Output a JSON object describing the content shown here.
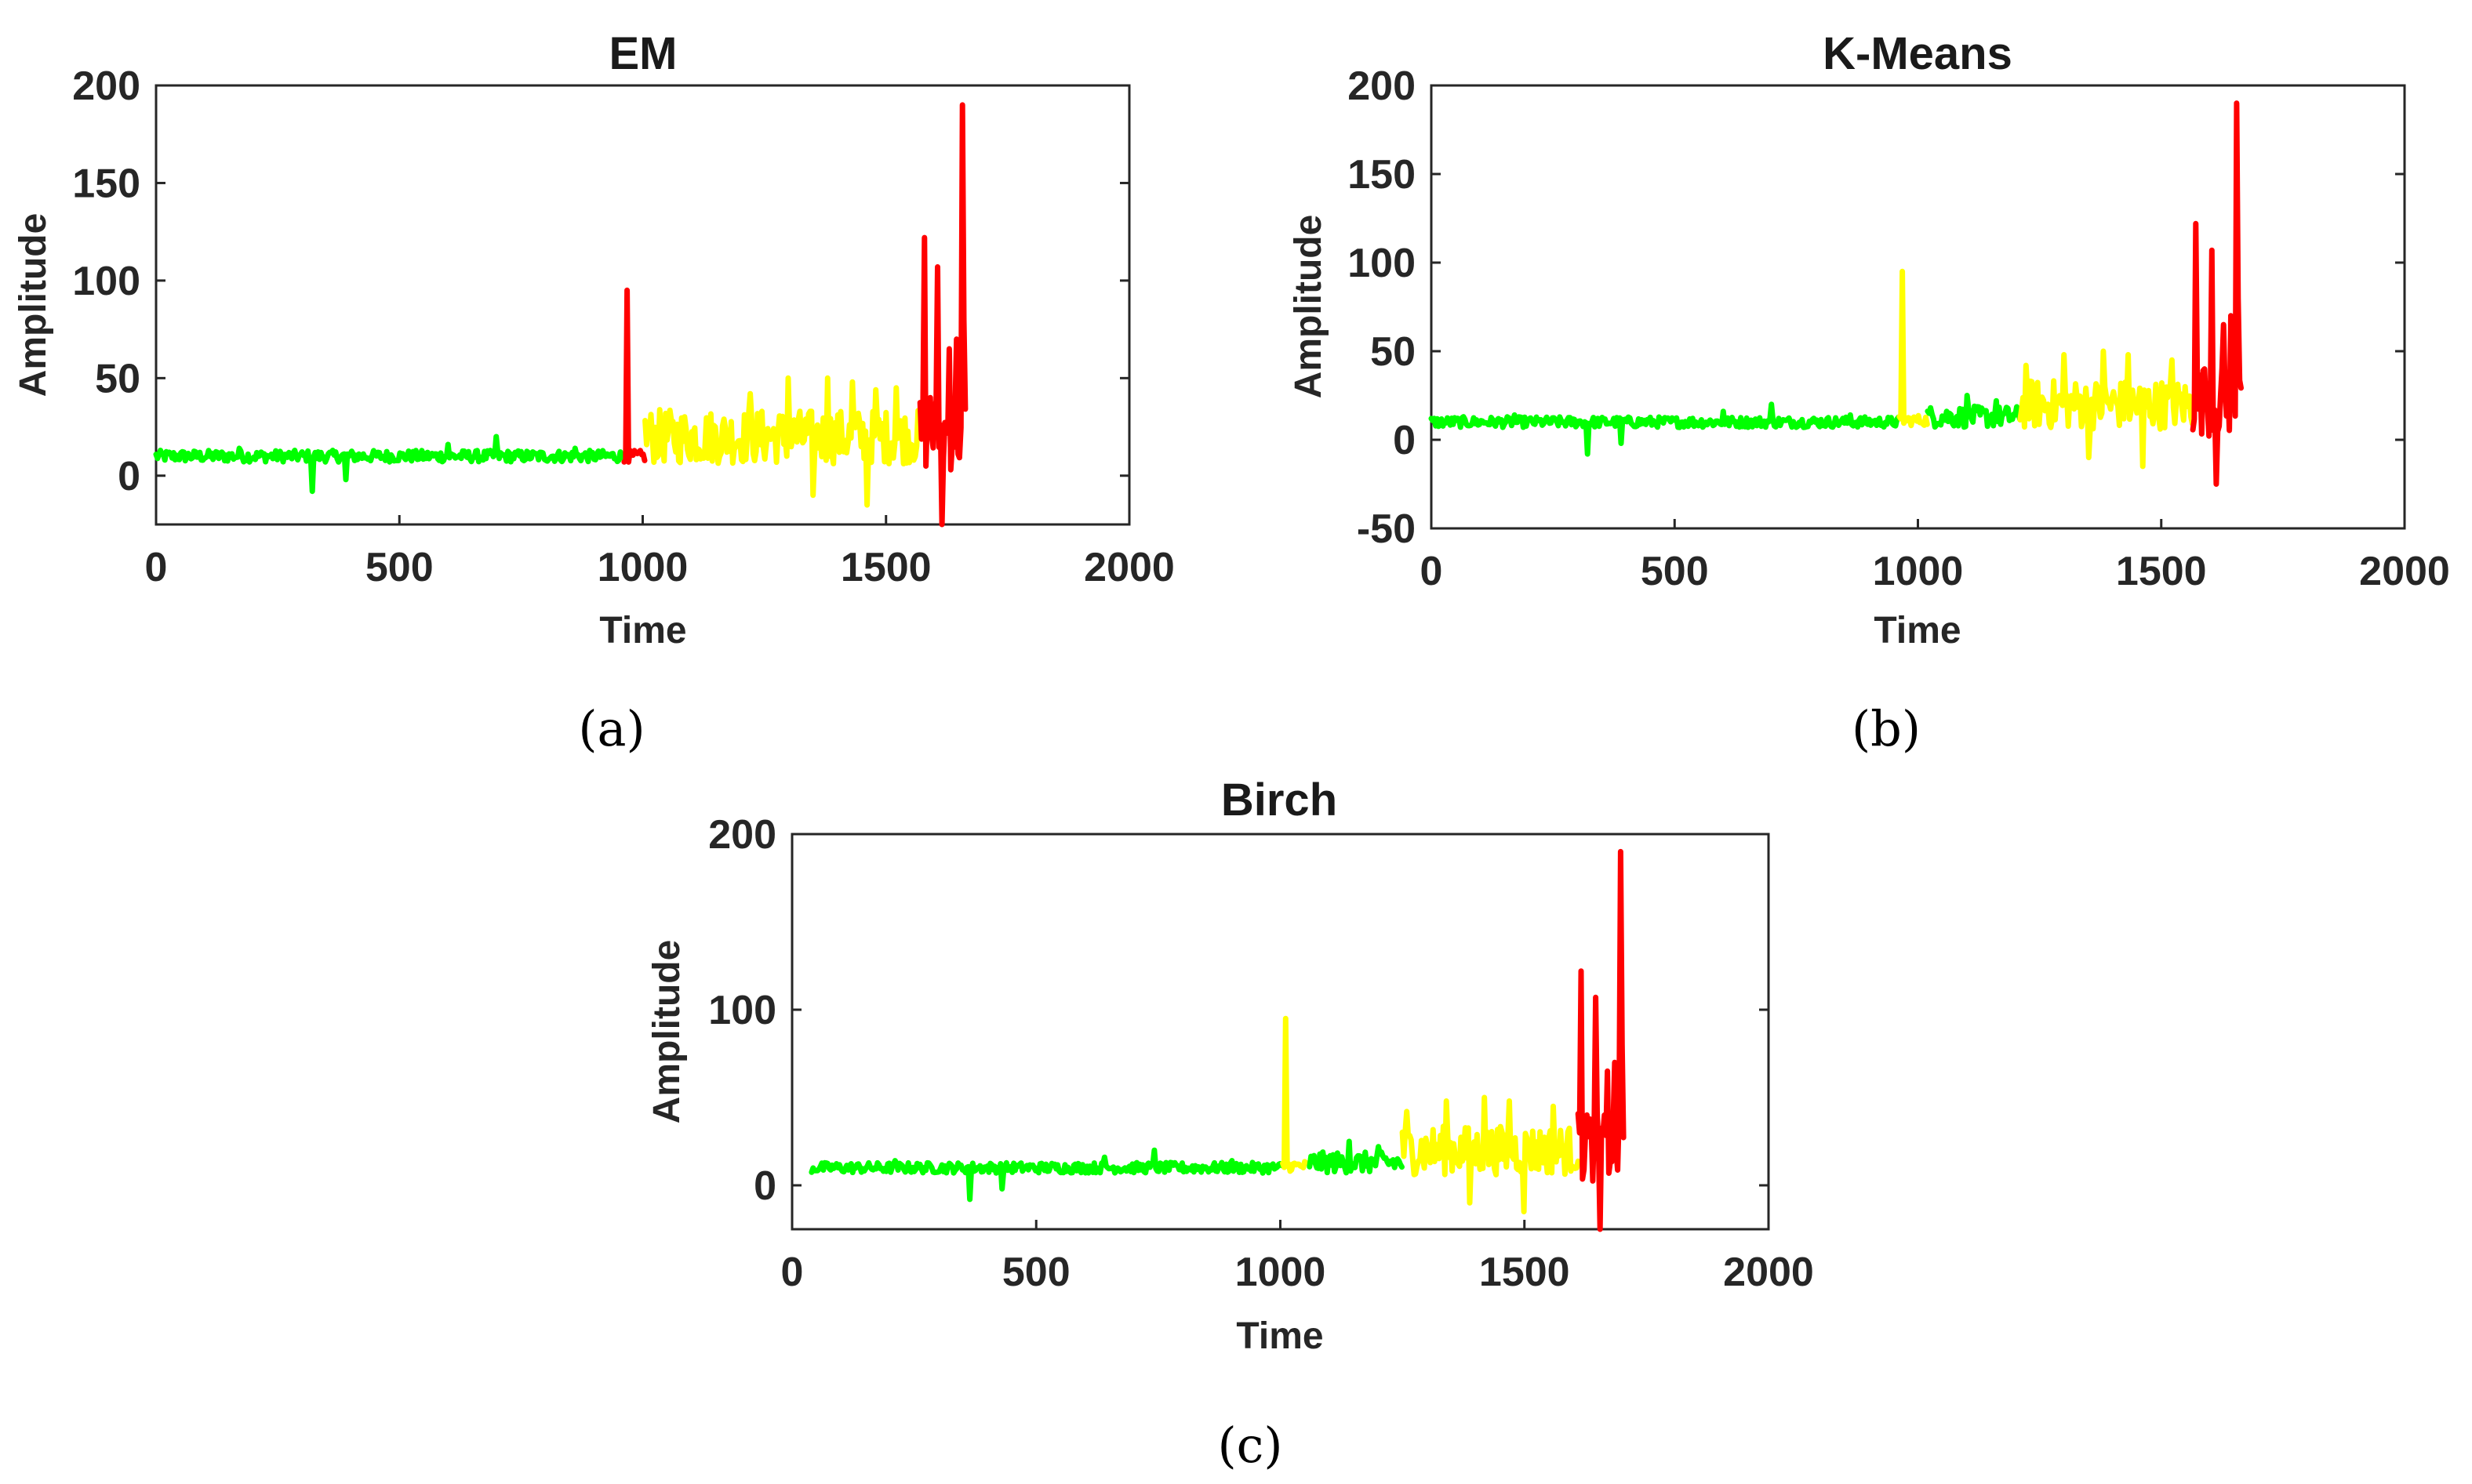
{
  "colors": {
    "low": "#00ff00",
    "mid": "#ffff00",
    "high": "#ff0000",
    "axis": "#262626"
  },
  "chart_data": [
    {
      "type": "line",
      "panel": "a",
      "title": "EM",
      "caption": "(a)",
      "xlabel": "Time",
      "ylabel": "Amplitude",
      "xlim": [
        0,
        2000
      ],
      "ylim": [
        -25,
        200
      ],
      "xticks": [
        0,
        500,
        1000,
        1500,
        2000
      ],
      "yticks": [
        0,
        50,
        100,
        150,
        200
      ],
      "segments": [
        {
          "cluster": "low",
          "x_start": 0,
          "x_end": 962,
          "base": 10,
          "spread": 3,
          "spikes": [
            [
              170,
              14
            ],
            [
              322,
              -8
            ],
            [
              390,
              -2
            ],
            [
              600,
              16
            ],
            [
              700,
              20
            ],
            [
              860,
              14
            ]
          ]
        },
        {
          "cluster": "high",
          "x_start": 962,
          "x_end": 1005,
          "base": 10,
          "spread": 3,
          "spikes": [
            [
              968,
              95
            ],
            [
              972,
              7
            ]
          ]
        },
        {
          "cluster": "mid",
          "x_start": 1005,
          "x_end": 1570,
          "base": 20,
          "spread": 14,
          "spikes": [
            [
              1220,
              42
            ],
            [
              1300,
              50
            ],
            [
              1380,
              50
            ],
            [
              1430,
              48
            ],
            [
              1460,
              -15
            ],
            [
              1480,
              44
            ],
            [
              1520,
              45
            ],
            [
              1350,
              -10
            ]
          ]
        },
        {
          "cluster": "high",
          "x_start": 1570,
          "x_end": 1665,
          "base": 22,
          "spread": 20,
          "spikes": [
            [
              1577,
              122
            ],
            [
              1590,
              40
            ],
            [
              1605,
              107
            ],
            [
              1615,
              -25
            ],
            [
              1630,
              65
            ],
            [
              1645,
              70
            ],
            [
              1655,
              190
            ],
            [
              1660,
              80
            ]
          ]
        }
      ]
    },
    {
      "type": "line",
      "panel": "b",
      "title": "K-Means",
      "caption": "(b)",
      "xlabel": "Time",
      "ylabel": "Amplitude",
      "xlim": [
        0,
        2000
      ],
      "ylim": [
        -50,
        200
      ],
      "xticks": [
        0,
        500,
        1000,
        1500,
        2000
      ],
      "yticks": [
        -50,
        0,
        50,
        100,
        150,
        200
      ],
      "segments": [
        {
          "cluster": "low",
          "x_start": 0,
          "x_end": 962,
          "base": 10,
          "spread": 3,
          "spikes": [
            [
              170,
              14
            ],
            [
              322,
              -8
            ],
            [
              390,
              -2
            ],
            [
              600,
              16
            ],
            [
              700,
              20
            ],
            [
              860,
              14
            ]
          ]
        },
        {
          "cluster": "mid",
          "x_start": 962,
          "x_end": 1020,
          "base": 11,
          "spread": 3,
          "spikes": [
            [
              968,
              95
            ]
          ]
        },
        {
          "cluster": "low",
          "x_start": 1020,
          "x_end": 1210,
          "base": 13,
          "spread": 6,
          "spikes": [
            [
              1100,
              25
            ],
            [
              1160,
              22
            ]
          ]
        },
        {
          "cluster": "mid",
          "x_start": 1210,
          "x_end": 1565,
          "base": 20,
          "spread": 14,
          "spikes": [
            [
              1220,
              42
            ],
            [
              1300,
              48
            ],
            [
              1380,
              50
            ],
            [
              1430,
              48
            ],
            [
              1460,
              -15
            ],
            [
              1520,
              45
            ],
            [
              1350,
              -10
            ]
          ]
        },
        {
          "cluster": "high",
          "x_start": 1565,
          "x_end": 1665,
          "base": 22,
          "spread": 20,
          "spikes": [
            [
              1572,
              122
            ],
            [
              1590,
              40
            ],
            [
              1605,
              107
            ],
            [
              1615,
              -25
            ],
            [
              1630,
              65
            ],
            [
              1645,
              70
            ],
            [
              1655,
              190
            ],
            [
              1660,
              80
            ]
          ]
        }
      ]
    },
    {
      "type": "line",
      "panel": "c",
      "title": "Birch",
      "caption": "(c)",
      "xlabel": "Time",
      "ylabel": "Amplitude",
      "xlim": [
        0,
        2000
      ],
      "ylim": [
        -25,
        200
      ],
      "xticks": [
        0,
        500,
        1000,
        1500,
        2000
      ],
      "yticks": [
        0,
        100,
        200
      ],
      "segments": [
        {
          "cluster": "low",
          "x_start": 40,
          "x_end": 1005,
          "base": 10,
          "spread": 3,
          "spikes": [
            [
              210,
              14
            ],
            [
              362,
              -8
            ],
            [
              430,
              -2
            ],
            [
              640,
              16
            ],
            [
              740,
              20
            ],
            [
              900,
              14
            ]
          ]
        },
        {
          "cluster": "mid",
          "x_start": 1005,
          "x_end": 1060,
          "base": 11,
          "spread": 3,
          "spikes": [
            [
              1010,
              95
            ]
          ]
        },
        {
          "cluster": "low",
          "x_start": 1060,
          "x_end": 1250,
          "base": 13,
          "spread": 6,
          "spikes": [
            [
              1140,
              25
            ],
            [
              1200,
              22
            ]
          ]
        },
        {
          "cluster": "mid",
          "x_start": 1250,
          "x_end": 1610,
          "base": 20,
          "spread": 14,
          "spikes": [
            [
              1260,
              42
            ],
            [
              1340,
              48
            ],
            [
              1420,
              50
            ],
            [
              1470,
              48
            ],
            [
              1500,
              -15
            ],
            [
              1560,
              45
            ],
            [
              1390,
              -10
            ]
          ]
        },
        {
          "cluster": "high",
          "x_start": 1610,
          "x_end": 1705,
          "base": 22,
          "spread": 20,
          "spikes": [
            [
              1617,
              122
            ],
            [
              1630,
              40
            ],
            [
              1648,
              107
            ],
            [
              1655,
              -25
            ],
            [
              1670,
              65
            ],
            [
              1685,
              70
            ],
            [
              1697,
              190
            ],
            [
              1702,
              80
            ]
          ]
        }
      ]
    }
  ]
}
